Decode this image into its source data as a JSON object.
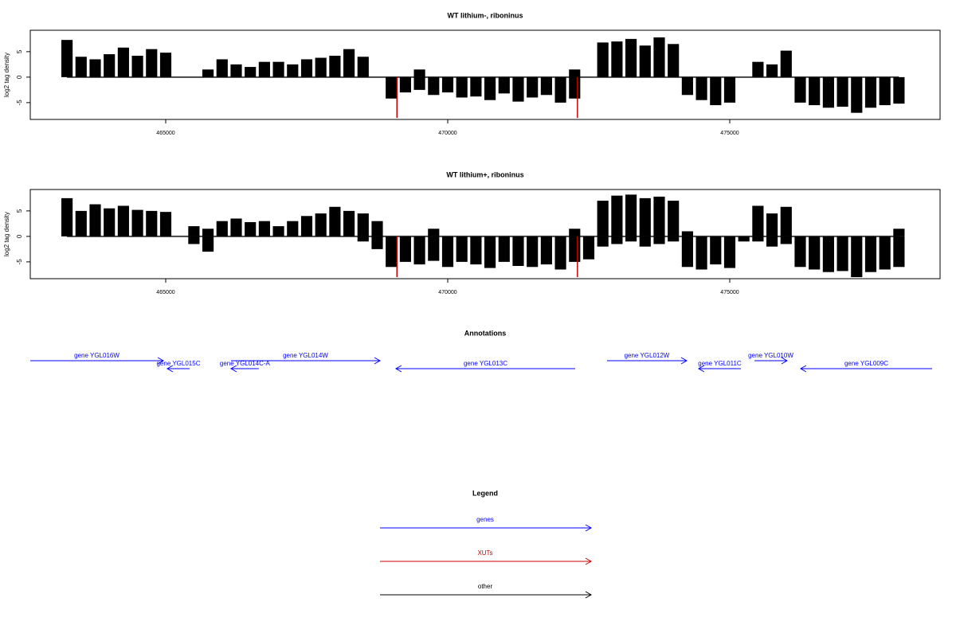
{
  "chart_data": [
    {
      "type": "track",
      "title": "WT lithium-, riboninus",
      "y_label": "log2 tag density",
      "xlim": [
        462599,
        478729
      ],
      "ylim": [
        -8.3,
        9.2
      ],
      "xticks": [
        465000,
        470000,
        475000
      ],
      "yticks": [
        -5,
        0,
        5
      ],
      "x": [
        463250,
        463500,
        463750,
        464000,
        464250,
        464500,
        464750,
        465000,
        465250,
        465500,
        465750,
        466000,
        466250,
        466500,
        466750,
        467000,
        467250,
        467500,
        467750,
        468000,
        468250,
        468500,
        468750,
        469000,
        469250,
        469500,
        469750,
        470000,
        470250,
        470500,
        470750,
        471000,
        471250,
        471500,
        471750,
        472000,
        472250,
        472500,
        472750,
        473000,
        473250,
        473500,
        473750,
        474000,
        474250,
        474500,
        474750,
        475000,
        475250,
        475500,
        475750,
        476000,
        476250,
        476500,
        476750,
        477000,
        477250,
        477500,
        477750,
        478000
      ],
      "series": [
        {
          "name": "plus",
          "color": "#000000",
          "values": [
            7.3,
            4,
            3.5,
            4.5,
            5.8,
            4.2,
            5.5,
            4.8,
            0,
            0,
            1.5,
            3.5,
            2.5,
            2,
            3,
            3,
            2.5,
            3.5,
            3.8,
            4.2,
            5.5,
            4,
            0,
            0,
            0,
            1.5,
            0,
            0,
            0,
            0,
            0,
            0,
            0,
            0,
            0,
            0,
            1.5,
            0,
            6.8,
            7,
            7.5,
            6.2,
            7.8,
            6.5,
            0,
            0,
            0,
            0,
            0,
            3,
            2.5,
            5.2,
            0,
            0,
            0,
            0,
            0,
            0,
            0,
            0
          ]
        },
        {
          "name": "minus",
          "color": "#000000",
          "values": [
            0,
            0,
            0,
            0,
            0,
            0,
            0,
            0,
            0,
            0,
            0,
            0,
            0,
            0,
            0,
            0,
            0,
            0,
            0,
            0,
            0,
            0,
            0,
            -4.2,
            -3,
            -2.5,
            -3.5,
            -3,
            -4,
            -3.8,
            -4.5,
            -3.2,
            -4.8,
            -4,
            -3.5,
            -5,
            -4.2,
            0,
            0,
            0,
            0,
            0,
            0,
            0,
            -3.5,
            -4.5,
            -5.5,
            -5,
            0,
            0,
            0,
            0,
            -5,
            -5.5,
            -6,
            -5.8,
            -7,
            -6,
            -5.5,
            -5.2
          ]
        },
        {
          "name": "XUTs",
          "color": "#cc0000",
          "x": [
            469100,
            472300
          ],
          "values": [
            -8,
            -8
          ]
        }
      ]
    },
    {
      "type": "track",
      "title": "WT lithium+, riboninus",
      "y_label": "log2 tag density",
      "xlim": [
        462599,
        478729
      ],
      "ylim": [
        -8.3,
        9.2
      ],
      "xticks": [
        465000,
        470000,
        475000
      ],
      "yticks": [
        -5,
        0,
        5
      ],
      "x": [
        463250,
        463500,
        463750,
        464000,
        464250,
        464500,
        464750,
        465000,
        465250,
        465500,
        465750,
        466000,
        466250,
        466500,
        466750,
        467000,
        467250,
        467500,
        467750,
        468000,
        468250,
        468500,
        468750,
        469000,
        469250,
        469500,
        469750,
        470000,
        470250,
        470500,
        470750,
        471000,
        471250,
        471500,
        471750,
        472000,
        472250,
        472500,
        472750,
        473000,
        473250,
        473500,
        473750,
        474000,
        474250,
        474500,
        474750,
        475000,
        475250,
        475500,
        475750,
        476000,
        476250,
        476500,
        476750,
        477000,
        477250,
        477500,
        477750,
        478000
      ],
      "series": [
        {
          "name": "plus",
          "color": "#000000",
          "values": [
            7.5,
            5,
            6.3,
            5.5,
            6,
            5.2,
            5,
            4.8,
            0,
            2,
            1.5,
            3,
            3.5,
            2.8,
            3,
            2,
            3,
            4,
            4.5,
            5.8,
            5,
            4.5,
            3,
            0,
            0,
            0,
            1.5,
            0,
            0,
            0,
            0,
            0,
            0,
            0,
            0,
            0,
            1.5,
            0,
            7,
            8,
            8.2,
            7.5,
            7.8,
            7,
            1,
            0,
            0,
            0,
            0,
            6,
            4.5,
            5.8,
            0,
            0,
            0,
            0,
            0,
            0,
            0,
            1.5
          ]
        },
        {
          "name": "minus",
          "color": "#000000",
          "values": [
            0,
            0,
            0,
            0,
            0,
            0,
            0,
            0,
            0,
            -1.5,
            -3,
            0,
            0,
            0,
            0,
            0,
            0,
            0,
            0,
            0,
            0,
            -1,
            -2.5,
            -6,
            -5,
            -5.5,
            -4.8,
            -6,
            -5,
            -5.5,
            -6.2,
            -5,
            -5.8,
            -6,
            -5.5,
            -6.5,
            -5,
            -4.5,
            -2,
            -1.5,
            -1,
            -2,
            -1.5,
            -1,
            -6,
            -6.5,
            -5.5,
            -6.2,
            -1,
            -1,
            -2,
            -1.5,
            -6,
            -6.5,
            -7,
            -6.8,
            -8,
            -7,
            -6.5,
            -6
          ]
        },
        {
          "name": "XUTs",
          "color": "#cc0000",
          "x": [
            469100,
            472300
          ],
          "values": [
            -8,
            -8
          ]
        }
      ]
    },
    {
      "type": "annotation",
      "title": "Annotations",
      "xlim": [
        462599,
        478729
      ],
      "color": "#0000ff",
      "genes": [
        {
          "label": "gene YGL016W",
          "from": 462600,
          "to": 464958,
          "strand": "+"
        },
        {
          "label": "gene YGL015C",
          "from": 465424,
          "to": 465028,
          "strand": "-"
        },
        {
          "label": "gene YGL014C-A",
          "from": 466650,
          "to": 466158,
          "strand": "-"
        },
        {
          "label": "gene YGL014W",
          "from": 466158,
          "to": 468799,
          "strand": "+"
        },
        {
          "label": "gene YGL013C",
          "from": 472260,
          "to": 469082,
          "strand": "-"
        },
        {
          "label": "gene YGL012W",
          "from": 472825,
          "to": 474237,
          "strand": "+"
        },
        {
          "label": "gene YGL011C",
          "from": 475198,
          "to": 474449,
          "strand": "-"
        },
        {
          "label": "gene YGL010W",
          "from": 475438,
          "to": 476017,
          "strand": "+"
        },
        {
          "label": "gene YGL009C",
          "from": 478588,
          "to": 476257,
          "strand": "-"
        }
      ]
    }
  ],
  "legend": {
    "title": "Legend",
    "items": [
      {
        "label": "genes",
        "color": "#0000ff"
      },
      {
        "label": "XUTs",
        "color": "#cc0000"
      },
      {
        "label": "other",
        "color": "#000000"
      }
    ]
  }
}
